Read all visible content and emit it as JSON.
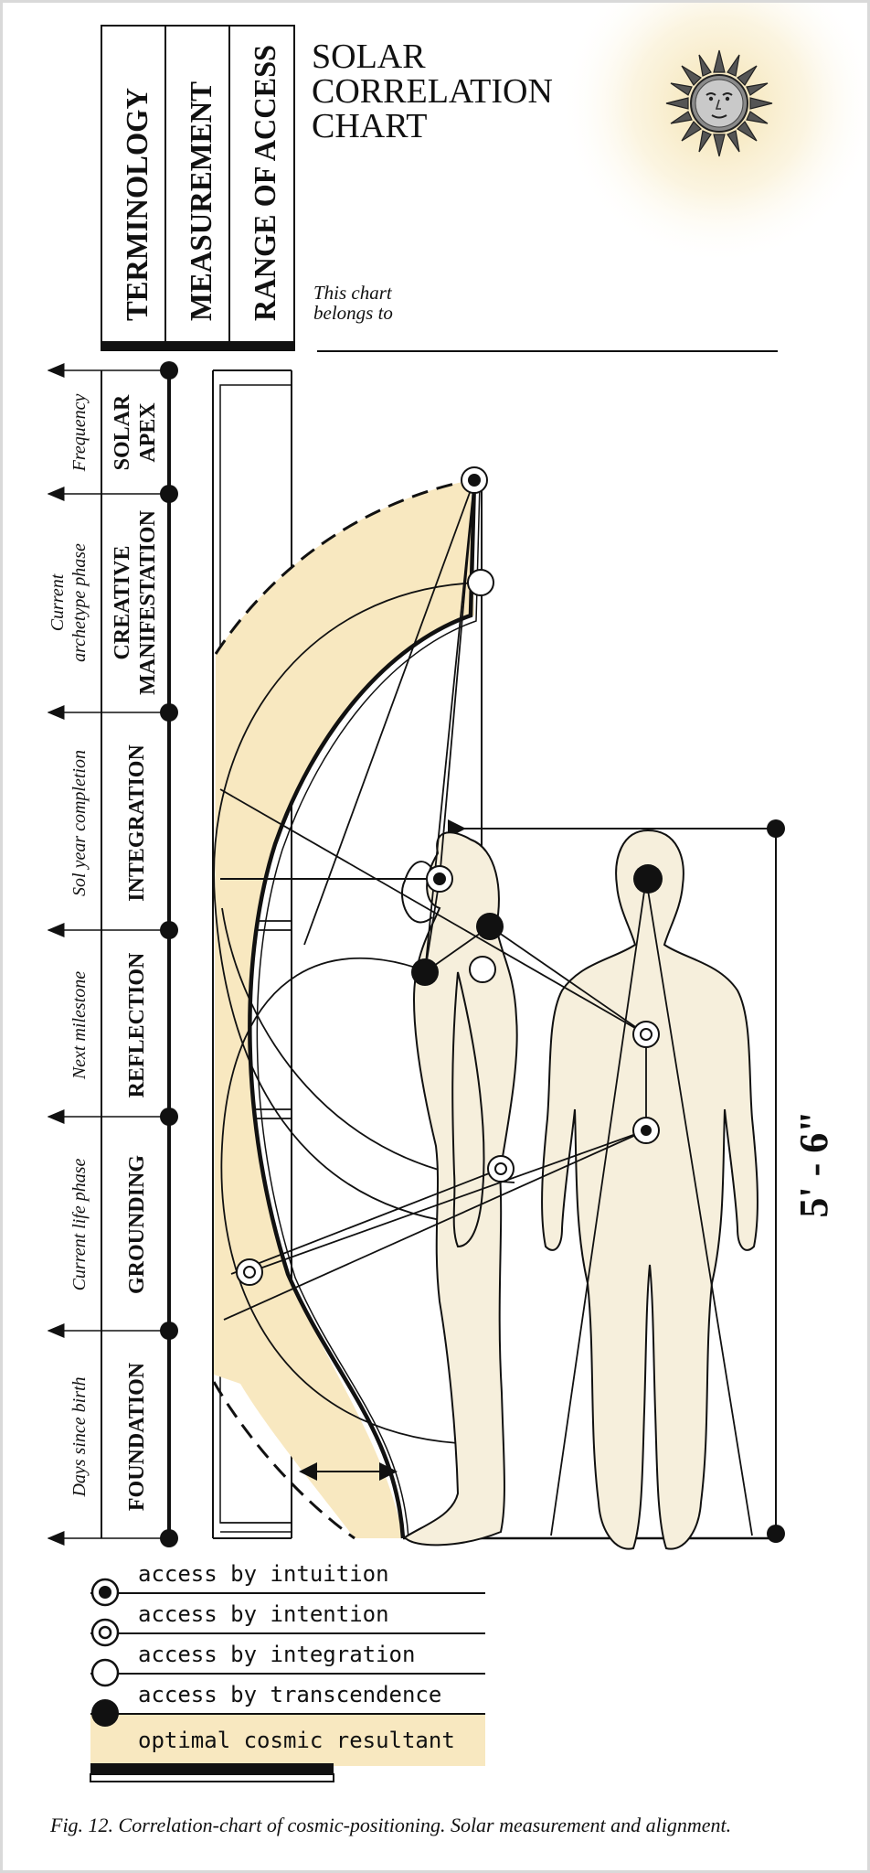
{
  "title": {
    "lines": [
      "SOLAR",
      "CORRELATION",
      "CHART"
    ]
  },
  "sun_icon": "sun-face-icon",
  "header_columns": [
    "TERMINOLOGY",
    "MEASUREMENT",
    "RANGE OF ACCESS"
  ],
  "belongs": {
    "line1": "This chart",
    "line2": "belongs to"
  },
  "phases": [
    {
      "term": "Frequency",
      "name_lines": [
        "SOLAR",
        "APEX"
      ]
    },
    {
      "term_lines": [
        "Current",
        "archetype phase"
      ],
      "name_lines": [
        "CREATIVE",
        "MANIFESTATION"
      ]
    },
    {
      "term": "Sol year completion",
      "name": "INTEGRATION"
    },
    {
      "term": "Next milestone",
      "name": "REFLECTION"
    },
    {
      "term": "Current life phase",
      "name": "GROUNDING"
    },
    {
      "term": "Days since birth",
      "name": "FOUNDATION"
    }
  ],
  "height_label": "5' - 6\"",
  "legend": [
    {
      "label": "access by intuition",
      "icon": "dot-in-ring-icon"
    },
    {
      "label": "access by intention",
      "icon": "double-ring-icon"
    },
    {
      "label": "access by integration",
      "icon": "open-ring-icon"
    },
    {
      "label": "access by transcendence",
      "icon": "solid-dot-icon"
    },
    {
      "label": "optimal cosmic resultant",
      "icon": "highlight-band"
    }
  ],
  "caption": "Fig. 12.   Correlation-chart of cosmic-positioning. Solar measurement and alignment.",
  "colors": {
    "accent_fill": "#f8e8c0",
    "body_fill": "#f6efdc",
    "ink": "#111111"
  }
}
